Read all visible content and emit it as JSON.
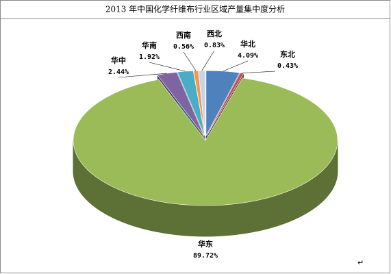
{
  "chart_data": {
    "type": "pie3d",
    "title": "2013 年中国化学纤维布行业区域产量集中度分析",
    "categories": [
      "华北",
      "东北",
      "华东",
      "华中",
      "华南",
      "西南",
      "西北"
    ],
    "values": [
      4.09,
      0.43,
      89.72,
      2.44,
      1.92,
      0.56,
      0.83
    ],
    "value_labels": [
      "4.09%",
      "0.43%",
      "89.72%",
      "2.44%",
      "1.92%",
      "0.56%",
      "0.83%"
    ],
    "colors": [
      "#4f81bd",
      "#c0504d",
      "#9bbb59",
      "#8064a2",
      "#4bacc6",
      "#f79646",
      "#c6d4ea"
    ]
  }
}
